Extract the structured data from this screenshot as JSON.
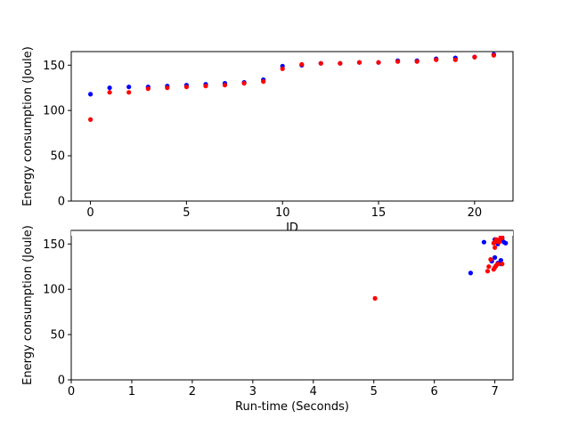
{
  "chart_data": [
    {
      "type": "scatter",
      "xlabel": "ID",
      "ylabel": "Energy consumption (Joule)",
      "xlim": [
        -1,
        22
      ],
      "ylim": [
        0,
        165
      ],
      "xticks": [
        0,
        5,
        10,
        15,
        20
      ],
      "yticks": [
        0,
        50,
        100,
        150
      ],
      "grid": false,
      "series": [
        {
          "color": "#0000ff",
          "points": [
            [
              0,
              118
            ],
            [
              1,
              125
            ],
            [
              2,
              126
            ],
            [
              3,
              126
            ],
            [
              4,
              127
            ],
            [
              5,
              128
            ],
            [
              6,
              129
            ],
            [
              7,
              130
            ],
            [
              8,
              131
            ],
            [
              9,
              134
            ],
            [
              10,
              149
            ],
            [
              11,
              150
            ],
            [
              12,
              152
            ],
            [
              13,
              152
            ],
            [
              14,
              153
            ],
            [
              15,
              153
            ],
            [
              16,
              155
            ],
            [
              17,
              155
            ],
            [
              18,
              157
            ],
            [
              19,
              158
            ],
            [
              20,
              159
            ],
            [
              21,
              162
            ]
          ]
        },
        {
          "color": "#ff0000",
          "points": [
            [
              0,
              90
            ],
            [
              1,
              120
            ],
            [
              2,
              120
            ],
            [
              3,
              124
            ],
            [
              4,
              125
            ],
            [
              5,
              126
            ],
            [
              6,
              127
            ],
            [
              7,
              128
            ],
            [
              8,
              130
            ],
            [
              9,
              132
            ],
            [
              10,
              146
            ],
            [
              11,
              151
            ],
            [
              12,
              152
            ],
            [
              13,
              152
            ],
            [
              14,
              153
            ],
            [
              15,
              153
            ],
            [
              16,
              154
            ],
            [
              17,
              154
            ],
            [
              18,
              156
            ],
            [
              19,
              156
            ],
            [
              20,
              159
            ],
            [
              21,
              161
            ]
          ]
        }
      ]
    },
    {
      "type": "scatter",
      "xlabel": "Run-time (Seconds)",
      "ylabel": "Energy consumption (Joule)",
      "xlim": [
        0,
        7.3
      ],
      "ylim": [
        0,
        165
      ],
      "xticks": [
        0,
        1,
        2,
        3,
        4,
        5,
        6,
        7
      ],
      "yticks": [
        0,
        50,
        100,
        150
      ],
      "grid": false,
      "series": [
        {
          "color": "#0000ff",
          "points": [
            [
              6.6,
              118
            ],
            [
              6.82,
              152
            ],
            [
              6.95,
              131
            ],
            [
              7.0,
              135
            ],
            [
              7.02,
              126
            ],
            [
              7.05,
              129
            ],
            [
              7.1,
              128
            ],
            [
              7.08,
              162
            ],
            [
              7.12,
              155
            ],
            [
              7.15,
              152
            ],
            [
              7.18,
              151
            ],
            [
              7.05,
              150
            ],
            [
              7.1,
              132
            ],
            [
              7.02,
              153
            ],
            [
              7.12,
              157
            ],
            [
              7.0,
              155
            ]
          ]
        },
        {
          "color": "#ff0000",
          "points": [
            [
              5.02,
              90
            ],
            [
              6.88,
              120
            ],
            [
              6.9,
              125
            ],
            [
              6.93,
              133
            ],
            [
              6.98,
              122
            ],
            [
              7.0,
              124
            ],
            [
              7.02,
              126
            ],
            [
              7.05,
              128
            ],
            [
              7.0,
              146
            ],
            [
              6.98,
              151
            ],
            [
              7.0,
              152
            ],
            [
              7.03,
              153
            ],
            [
              7.06,
              153
            ],
            [
              7.05,
              154
            ],
            [
              7.08,
              155
            ],
            [
              7.1,
              156
            ],
            [
              7.1,
              159
            ],
            [
              7.08,
              161
            ],
            [
              7.12,
              157
            ],
            [
              7.02,
              155
            ],
            [
              7.07,
              152
            ],
            [
              7.12,
              128
            ],
            [
              7.05,
              154
            ]
          ]
        }
      ]
    }
  ]
}
